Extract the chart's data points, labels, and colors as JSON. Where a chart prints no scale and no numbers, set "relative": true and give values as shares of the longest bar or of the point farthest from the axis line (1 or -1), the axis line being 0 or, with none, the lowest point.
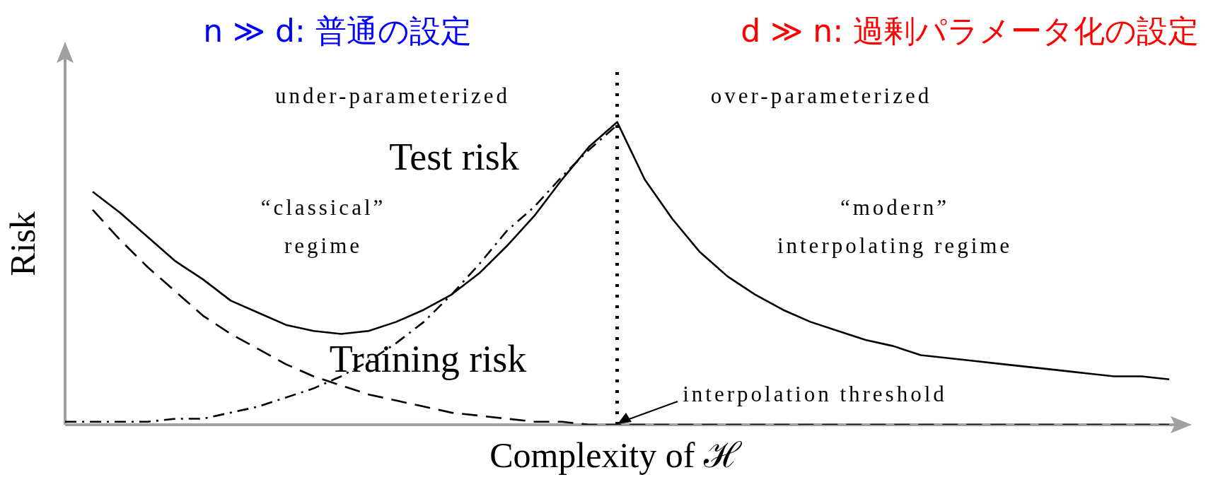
{
  "chart_data": {
    "type": "line",
    "title": "n ≫ d: 普通の設定",
    "subtitle": "d ≫ n: 過剰パラメータ化の設定",
    "xlabel": "Complexity of ℋ",
    "ylabel": "Risk",
    "relative": true,
    "tick_labels": false,
    "line_style": "solid",
    "marker": "none",
    "categories": [
      null,
      null,
      null,
      null,
      null,
      null,
      null,
      null,
      null,
      null,
      null,
      null,
      null,
      null,
      null,
      null,
      null,
      null,
      null,
      null,
      null,
      null,
      null,
      null,
      null,
      null,
      null,
      null,
      null,
      null,
      null,
      null,
      null,
      null,
      null,
      null,
      null,
      null,
      null,
      null,
      null
    ],
    "series": [
      {
        "name": "Test risk",
        "color": "#000000",
        "values": [
          null,
          0.77,
          0.7,
          0.62,
          0.54,
          0.48,
          0.41,
          0.37,
          0.33,
          0.31,
          0.3,
          0.31,
          0.34,
          0.38,
          0.43,
          0.5,
          0.59,
          0.69,
          0.81,
          0.92,
          1,
          0.81,
          0.68,
          0.57,
          0.49,
          0.43,
          0.38,
          0.34,
          0.31,
          0.28,
          0.26,
          0.23,
          0.22,
          0.21,
          0.2,
          0.19,
          0.18,
          0.17,
          0.16,
          0.16,
          0.15
        ]
      },
      {
        "name": "Training risk",
        "color": "#000000",
        "line_style": "dashed",
        "values": [
          null,
          0.71,
          0.61,
          0.52,
          0.44,
          0.36,
          0.3,
          0.25,
          0.2,
          0.16,
          0.13,
          0.1,
          0.08,
          0.06,
          0.04,
          0.03,
          0.02,
          0.01,
          0.01,
          0,
          0,
          0,
          0,
          0,
          0,
          0,
          0,
          0,
          0,
          0,
          0,
          0,
          0,
          0,
          0,
          0,
          0,
          0,
          0,
          0,
          0
        ]
      },
      {
        "color": "#000000",
        "line_style": "dashdot",
        "values": [
          0.01,
          0.01,
          0.01,
          0.01,
          0.02,
          0.02,
          0.04,
          0.06,
          0.09,
          0.12,
          0.16,
          0.21,
          0.27,
          0.34,
          0.43,
          0.53,
          0.64,
          0.72,
          0.82,
          0.91,
          0.99,
          null,
          null,
          null,
          null,
          null,
          null,
          null,
          null,
          null,
          null,
          null,
          null,
          null,
          null,
          null,
          null,
          null,
          null,
          null,
          null
        ]
      }
    ],
    "annotations": [
      "under-parameterized",
      "over-parameterized",
      "“classical”\nregime",
      "“modern”\ninterpolating regime",
      "interpolation threshold"
    ]
  }
}
